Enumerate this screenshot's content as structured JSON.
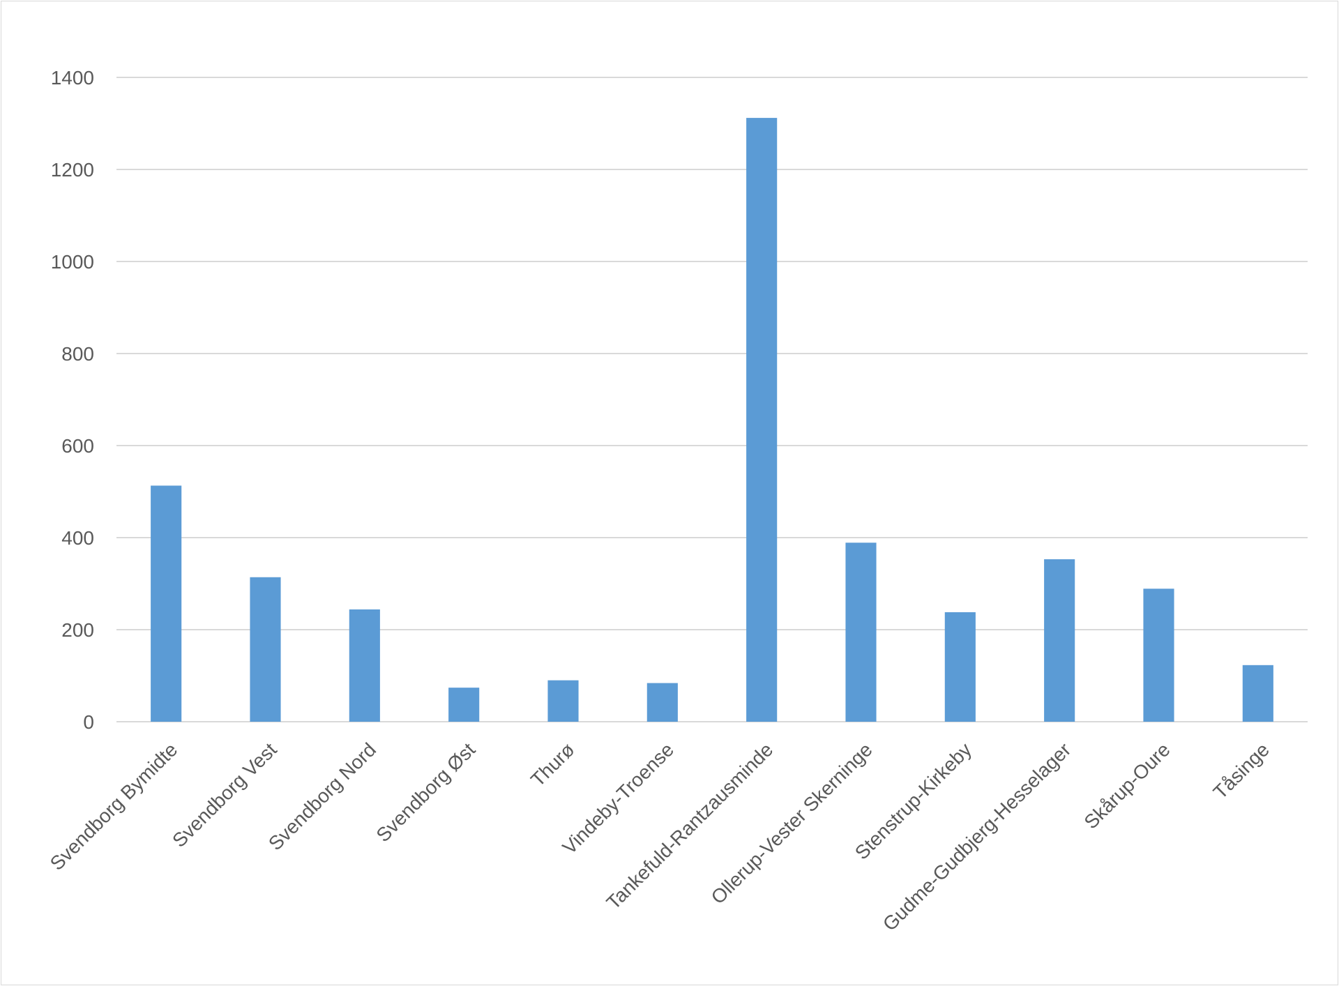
{
  "chart_data": {
    "type": "bar",
    "title": "",
    "xlabel": "",
    "ylabel": "",
    "ylim": [
      0,
      1400
    ],
    "yticks": [
      0,
      200,
      400,
      600,
      800,
      1000,
      1200,
      1400
    ],
    "grid": true,
    "legend": "none",
    "bar_color": "#5b9bd5",
    "categories": [
      "Svendborg Bymidte",
      "Svendborg Vest",
      "Svendborg Nord",
      "Svendborg Øst",
      "Thurø",
      "Vindeby-Troense",
      "Tankefuld-Rantzausminde",
      "Ollerup-Vester Skerninge",
      "Stenstrup-Kirkeby",
      "Gudme-Gudbjerg-Hesselager",
      "Skårup-Oure",
      "Tåsinge"
    ],
    "values": [
      513,
      314,
      244,
      74,
      90,
      84,
      1312,
      389,
      238,
      353,
      289,
      123
    ]
  }
}
